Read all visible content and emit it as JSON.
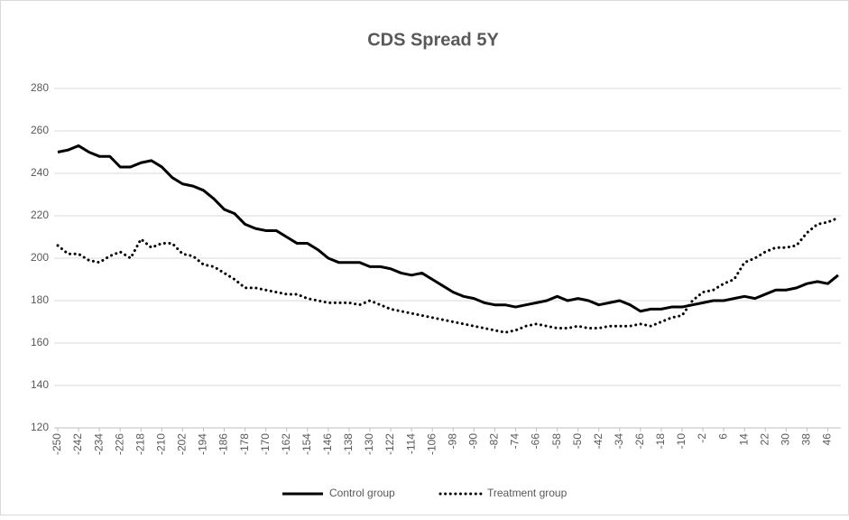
{
  "chart_data": {
    "type": "line",
    "title": "CDS Spread 5Y",
    "x": [
      -250,
      -246,
      -242,
      -238,
      -234,
      -230,
      -226,
      -222,
      -218,
      -214,
      -210,
      -206,
      -202,
      -198,
      -194,
      -190,
      -186,
      -182,
      -178,
      -174,
      -170,
      -166,
      -162,
      -158,
      -154,
      -150,
      -146,
      -142,
      -138,
      -134,
      -130,
      -126,
      -122,
      -118,
      -114,
      -110,
      -106,
      -102,
      -98,
      -94,
      -90,
      -86,
      -82,
      -78,
      -74,
      -70,
      -66,
      -62,
      -58,
      -54,
      -50,
      -46,
      -42,
      -38,
      -34,
      -30,
      -26,
      -22,
      -18,
      -14,
      -10,
      -6,
      -2,
      2,
      6,
      10,
      14,
      18,
      22,
      26,
      30,
      34,
      38,
      42,
      46,
      50
    ],
    "series": [
      {
        "name": "Control group",
        "color": "#000000",
        "style": "solid",
        "values": [
          250,
          251,
          253,
          250,
          248,
          248,
          243,
          243,
          245,
          246,
          243,
          238,
          235,
          234,
          232,
          228,
          223,
          221,
          216,
          214,
          213,
          213,
          210,
          207,
          207,
          204,
          200,
          198,
          198,
          198,
          196,
          196,
          195,
          193,
          192,
          193,
          190,
          187,
          184,
          182,
          181,
          179,
          178,
          178,
          177,
          178,
          179,
          180,
          182,
          180,
          181,
          180,
          178,
          179,
          180,
          178,
          175,
          176,
          176,
          177,
          177,
          178,
          179,
          180,
          180,
          181,
          182,
          181,
          183,
          185,
          185,
          186,
          188,
          189,
          188,
          192
        ]
      },
      {
        "name": "Treatment group",
        "color": "#000000",
        "style": "dotted",
        "values": [
          206,
          202,
          202,
          199,
          198,
          201,
          203,
          200,
          209,
          205,
          207,
          207,
          202,
          201,
          197,
          196,
          193,
          190,
          186,
          186,
          185,
          184,
          183,
          183,
          181,
          180,
          179,
          179,
          179,
          178,
          180,
          178,
          176,
          175,
          174,
          173,
          172,
          171,
          170,
          169,
          168,
          167,
          166,
          165,
          166,
          168,
          169,
          168,
          167,
          167,
          168,
          167,
          167,
          168,
          168,
          168,
          169,
          168,
          170,
          172,
          173,
          180,
          184,
          185,
          188,
          190,
          198,
          200,
          203,
          205,
          205,
          206,
          212,
          216,
          217,
          219
        ]
      }
    ],
    "xlim": [
      -250,
      50
    ],
    "xticks": [
      -250,
      -242,
      -234,
      -226,
      -218,
      -210,
      -202,
      -194,
      -186,
      -178,
      -170,
      -162,
      -154,
      -146,
      -138,
      -130,
      -122,
      -114,
      -106,
      -98,
      -90,
      -82,
      -74,
      -66,
      -58,
      -50,
      -42,
      -34,
      -26,
      -18,
      -10,
      -2,
      6,
      14,
      22,
      30,
      38,
      46
    ],
    "ylim": [
      120,
      280
    ],
    "yticks": [
      120,
      140,
      160,
      180,
      200,
      220,
      240,
      260,
      280
    ],
    "grid": true,
    "legend": "bottom"
  }
}
